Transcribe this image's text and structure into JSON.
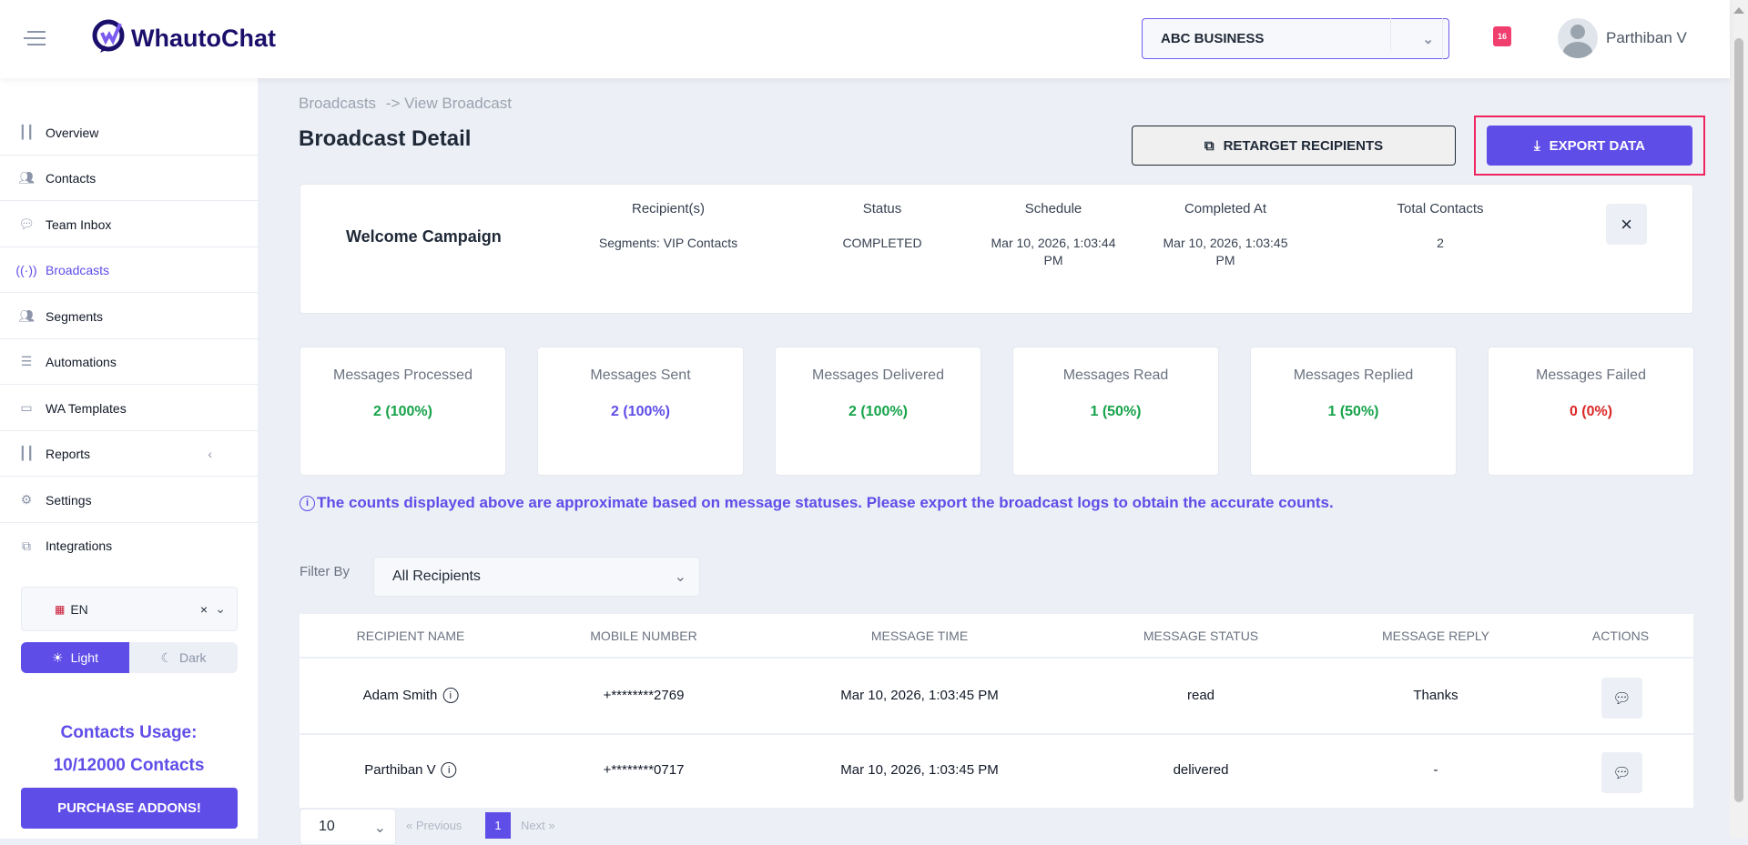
{
  "header": {
    "app_name": "WhautoChat",
    "business": "ABC BUSINESS",
    "notification_count": "16",
    "user_name": "Parthiban V"
  },
  "sidebar": {
    "items": [
      {
        "label": "Overview",
        "icon": "bar-chart-icon"
      },
      {
        "label": "Contacts",
        "icon": "users-icon"
      },
      {
        "label": "Team Inbox",
        "icon": "chat-icon"
      },
      {
        "label": "Broadcasts",
        "icon": "broadcast-icon"
      },
      {
        "label": "Segments",
        "icon": "users-icon"
      },
      {
        "label": "Automations",
        "icon": "sliders-icon"
      },
      {
        "label": "WA Templates",
        "icon": "message-icon"
      },
      {
        "label": "Reports",
        "icon": "bar-chart-icon"
      },
      {
        "label": "Settings",
        "icon": "gear-icon"
      },
      {
        "label": "Integrations",
        "icon": "network-icon"
      }
    ],
    "active": "Broadcasts",
    "language": "EN",
    "theme_light": "Light",
    "theme_dark": "Dark",
    "theme_selected": "Light",
    "usage_title": "Contacts Usage:",
    "usage_value": "10/12000 Contacts",
    "purchase_label": "PURCHASE ADDONS!"
  },
  "page": {
    "breadcrumb_parent": "Broadcasts",
    "breadcrumb_sep": "->",
    "breadcrumb_current": "View Broadcast",
    "title": "Broadcast Detail",
    "retarget_label": "RETARGET RECIPIENTS",
    "export_label": "EXPORT DATA"
  },
  "detail": {
    "name": "Welcome Campaign",
    "columns": [
      {
        "label": "Recipient(s)",
        "value": "Segments: VIP Contacts"
      },
      {
        "label": "Status",
        "value": "COMPLETED"
      },
      {
        "label": "Schedule",
        "value": "Mar 10, 2026, 1:03:44 PM"
      },
      {
        "label": "Completed At",
        "value": "Mar 10, 2026, 1:03:45 PM"
      },
      {
        "label": "Total Contacts",
        "value": "2"
      }
    ],
    "close": "×"
  },
  "stats": [
    {
      "label": "Messages Processed",
      "value": "2 (100%)",
      "color": "#16a34a"
    },
    {
      "label": "Messages Sent",
      "value": "2 (100%)",
      "color": "#5f4de8"
    },
    {
      "label": "Messages Delivered",
      "value": "2 (100%)",
      "color": "#16a34a"
    },
    {
      "label": "Messages Read",
      "value": "1 (50%)",
      "color": "#16a34a"
    },
    {
      "label": "Messages Replied",
      "value": "1 (50%)",
      "color": "#16a34a"
    },
    {
      "label": "Messages Failed",
      "value": "0 (0%)",
      "color": "#dc2626"
    }
  ],
  "note": "The counts displayed above are approximate based on message statuses. Please export the broadcast logs to obtain the accurate counts.",
  "filter": {
    "label": "Filter By",
    "value": "All Recipients"
  },
  "table": {
    "headers": [
      "RECIPIENT NAME",
      "MOBILE NUMBER",
      "MESSAGE TIME",
      "MESSAGE STATUS",
      "MESSAGE REPLY",
      "ACTIONS"
    ],
    "rows": [
      {
        "name": "Adam Smith",
        "mobile": "+********2769",
        "time": "Mar 10, 2026, 1:03:45 PM",
        "status": "read",
        "reply": "Thanks"
      },
      {
        "name": "Parthiban V",
        "mobile": "+********0717",
        "time": "Mar 10, 2026, 1:03:45 PM",
        "status": "delivered",
        "reply": "-"
      }
    ]
  },
  "pagination": {
    "page_size": "10",
    "previous": "Previous",
    "next": "Next",
    "current": "1"
  },
  "colors": {
    "accent": "#5f4de8",
    "highlight": "#f0245e"
  }
}
